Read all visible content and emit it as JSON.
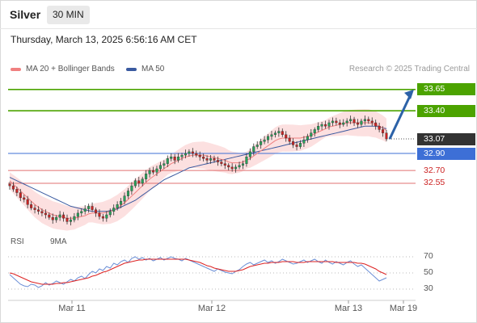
{
  "header": {
    "instrument": "Silver",
    "timeframe": "30 MIN",
    "datetime": "Thursday, March 13, 2025 6:56:16 AM CET"
  },
  "legend": {
    "ma20": "MA 20 + Bollinger Bands",
    "ma50": "MA 50",
    "credit": "Research © 2025 Trading Central"
  },
  "rsi_legend": {
    "rsi": "RSI",
    "ma9": "9MA"
  },
  "colors": {
    "resistance": "#4ca300",
    "pivot": "#3d6fd6",
    "support": "#e07070",
    "current": "#333333",
    "arrow": "#2c62a8",
    "candle_up": "#26a35a",
    "candle_down": "#cc2222",
    "ma20": "#f08080",
    "ma50": "#3a5aa0",
    "bollinger": "#fbdada",
    "rsi": "#6b8fd6",
    "rsi_ma": "#dd2222"
  },
  "chart_data": [
    {
      "type": "candlestick",
      "title": "Silver",
      "ylim": [
        32.0,
        33.8
      ],
      "x_ticks": [
        "Mar 11",
        "Mar 12",
        "Mar 13",
        "Mar 19"
      ],
      "levels": [
        {
          "label": "33.65",
          "value": 33.65,
          "kind": "resistance"
        },
        {
          "label": "33.40",
          "value": 33.4,
          "kind": "resistance"
        },
        {
          "label": "33.07",
          "value": 33.07,
          "kind": "current"
        },
        {
          "label": "32.90",
          "value": 32.9,
          "kind": "pivot"
        },
        {
          "label": "32.70",
          "value": 32.7,
          "kind": "support"
        },
        {
          "label": "32.55",
          "value": 32.55,
          "kind": "support"
        }
      ],
      "close_series": [
        32.52,
        32.48,
        32.44,
        32.38,
        32.36,
        32.3,
        32.26,
        32.24,
        32.22,
        32.2,
        32.18,
        32.15,
        32.12,
        32.15,
        32.18,
        32.14,
        32.1,
        32.12,
        32.16,
        32.2,
        32.22,
        32.25,
        32.28,
        32.24,
        32.2,
        32.16,
        32.14,
        32.18,
        32.22,
        32.26,
        32.3,
        32.34,
        32.4,
        32.46,
        32.52,
        32.58,
        32.55,
        32.6,
        32.66,
        32.7,
        32.68,
        32.72,
        32.76,
        32.78,
        32.84,
        32.86,
        32.82,
        32.86,
        32.88,
        32.9,
        32.92,
        32.9,
        32.88,
        32.86,
        32.84,
        32.82,
        32.84,
        32.82,
        32.8,
        32.78,
        32.76,
        32.74,
        32.72,
        32.74,
        32.76,
        32.78,
        32.86,
        32.92,
        32.98,
        33.0,
        33.04,
        33.06,
        33.1,
        33.12,
        33.14,
        33.16,
        33.12,
        33.08,
        33.04,
        33.0,
        32.98,
        33.02,
        33.06,
        33.1,
        33.14,
        33.18,
        33.22,
        33.24,
        33.22,
        33.26,
        33.28,
        33.26,
        33.24,
        33.26,
        33.28,
        33.3,
        33.26,
        33.24,
        33.28,
        33.3,
        33.28,
        33.26,
        33.22,
        33.18,
        33.14,
        33.07
      ],
      "ma20_series": [
        32.58,
        32.54,
        32.5,
        32.46,
        32.42,
        32.38,
        32.34,
        32.3,
        32.27,
        32.24,
        32.22,
        32.2,
        32.18,
        32.17,
        32.16,
        32.15,
        32.14,
        32.14,
        32.14,
        32.15,
        32.16,
        32.17,
        32.19,
        32.2,
        32.2,
        32.2,
        32.2,
        32.21,
        32.22,
        32.24,
        32.26,
        32.29,
        32.32,
        32.36,
        32.4,
        32.44,
        32.48,
        32.52,
        32.56,
        32.6,
        32.63,
        32.66,
        32.69,
        32.72,
        32.75,
        32.78,
        32.8,
        32.82,
        32.84,
        32.86,
        32.87,
        32.88,
        32.88,
        32.88,
        32.88,
        32.87,
        32.86,
        32.85,
        32.84,
        32.83,
        32.82,
        32.8,
        32.79,
        32.79,
        32.79,
        32.8,
        32.82,
        32.84,
        32.87,
        32.9,
        32.93,
        32.96,
        32.99,
        33.02,
        33.05,
        33.07,
        33.08,
        33.08,
        33.08,
        33.08,
        33.08,
        33.08,
        33.09,
        33.1,
        33.11,
        33.13,
        33.15,
        33.17,
        33.19,
        33.21,
        33.22,
        33.23,
        33.24,
        33.25,
        33.26,
        33.26,
        33.26,
        33.26,
        33.26,
        33.26,
        33.26,
        33.25,
        33.24,
        33.22,
        33.2,
        33.17
      ],
      "ma50_series": [
        32.62,
        32.6,
        32.58,
        32.56,
        32.54,
        32.52,
        32.5,
        32.48,
        32.46,
        32.44,
        32.42,
        32.4,
        32.38,
        32.36,
        32.34,
        32.32,
        32.3,
        32.28,
        32.27,
        32.26,
        32.25,
        32.24,
        32.23,
        32.22,
        32.22,
        32.22,
        32.22,
        32.22,
        32.23,
        32.24,
        32.25,
        32.27,
        32.29,
        32.31,
        32.33,
        32.35,
        32.38,
        32.41,
        32.44,
        32.47,
        32.5,
        32.53,
        32.56,
        32.59,
        32.61,
        32.63,
        32.65,
        32.67,
        32.69,
        32.71,
        32.73,
        32.74,
        32.75,
        32.76,
        32.77,
        32.78,
        32.79,
        32.8,
        32.81,
        32.82,
        32.83,
        32.84,
        32.85,
        32.86,
        32.87,
        32.88,
        32.89,
        32.9,
        32.91,
        32.92,
        32.93,
        32.94,
        32.95,
        32.96,
        32.97,
        32.98,
        32.99,
        33.0,
        33.01,
        33.02,
        33.03,
        33.04,
        33.05,
        33.06,
        33.07,
        33.08,
        33.09,
        33.1,
        33.11,
        33.12,
        33.13,
        33.14,
        33.15,
        33.16,
        33.17,
        33.18,
        33.19,
        33.2,
        33.21,
        33.22,
        33.22,
        33.22,
        33.22,
        33.21,
        33.2,
        33.19
      ],
      "forecast_arrow": {
        "from": 33.07,
        "to": 33.65
      }
    },
    {
      "type": "line",
      "title": "RSI",
      "ylim": [
        20,
        80
      ],
      "y_ticks": [
        "70",
        "50",
        "30"
      ],
      "series": [
        {
          "name": "RSI",
          "values": [
            48,
            44,
            40,
            36,
            34,
            33,
            36,
            35,
            32,
            34,
            38,
            35,
            37,
            40,
            38,
            36,
            39,
            42,
            40,
            44,
            46,
            43,
            48,
            52,
            50,
            55,
            53,
            58,
            56,
            62,
            60,
            64,
            66,
            63,
            68,
            70,
            67,
            69,
            66,
            68,
            65,
            67,
            69,
            66,
            68,
            70,
            68,
            67,
            65,
            68,
            66,
            64,
            62,
            60,
            58,
            56,
            54,
            52,
            55,
            53,
            51,
            50,
            49,
            52,
            54,
            58,
            61,
            63,
            60,
            62,
            64,
            66,
            63,
            65,
            62,
            64,
            67,
            65,
            63,
            61,
            62,
            64,
            66,
            63,
            65,
            67,
            64,
            62,
            66,
            63,
            61,
            64,
            62,
            60,
            63,
            65,
            61,
            58,
            60,
            56,
            52,
            48,
            44,
            40,
            42,
            44
          ]
        },
        {
          "name": "9MA",
          "values": [
            50,
            49,
            47,
            45,
            43,
            41,
            39,
            38,
            37,
            36,
            36,
            36,
            36,
            37,
            37,
            38,
            38,
            39,
            40,
            41,
            42,
            43,
            44,
            46,
            47,
            49,
            51,
            52,
            54,
            56,
            58,
            60,
            62,
            63,
            64,
            65,
            66,
            66,
            67,
            67,
            67,
            67,
            67,
            67,
            67,
            67,
            67,
            67,
            67,
            67,
            66,
            65,
            64,
            63,
            61,
            59,
            58,
            56,
            55,
            54,
            53,
            52,
            52,
            52,
            53,
            54,
            56,
            58,
            59,
            60,
            61,
            62,
            62,
            63,
            63,
            63,
            64,
            64,
            64,
            64,
            63,
            63,
            63,
            64,
            64,
            64,
            64,
            64,
            64,
            64,
            64,
            63,
            63,
            63,
            63,
            63,
            63,
            62,
            62,
            61,
            59,
            57,
            55,
            52,
            50,
            48
          ]
        }
      ]
    }
  ]
}
